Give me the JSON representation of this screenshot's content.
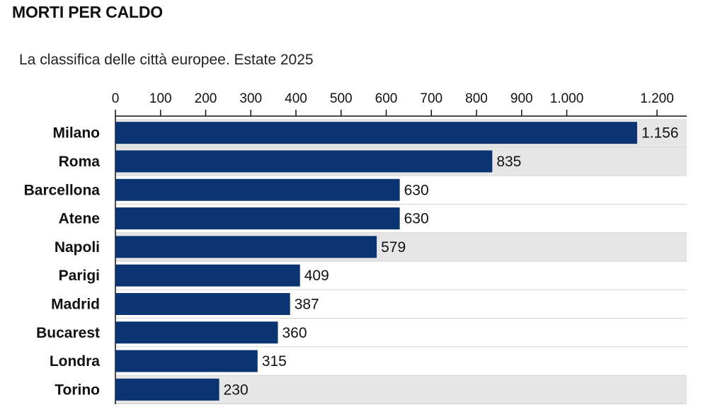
{
  "header": {
    "title": "MORTI PER CALDO",
    "subtitle": "La classifica delle città europee. Estate 2025"
  },
  "colors": {
    "bar": "#0a3572",
    "band": "#e6e6e6",
    "axis": "#111111"
  },
  "chart_data": {
    "type": "bar",
    "orientation": "horizontal",
    "title": "MORTI PER CALDO",
    "subtitle": "La classifica delle città europee. Estate 2025",
    "xlabel": "",
    "ylabel": "",
    "xlim": [
      0,
      1266
    ],
    "x_ticks": [
      0,
      100,
      200,
      300,
      400,
      500,
      600,
      700,
      800,
      900,
      1000,
      1200
    ],
    "x_tick_labels": [
      "0",
      "100",
      "200",
      "300",
      "400",
      "500",
      "600",
      "700",
      "800",
      "900",
      "1.000",
      "1.200"
    ],
    "axis_position": "top",
    "grid": false,
    "categories": [
      "Milano",
      "Roma",
      "Barcellona",
      "Atene",
      "Napoli",
      "Parigi",
      "Madrid",
      "Bucarest",
      "Londra",
      "Torino"
    ],
    "values": [
      1156,
      835,
      630,
      630,
      579,
      409,
      387,
      360,
      315,
      230
    ],
    "value_labels": [
      "1.156",
      "835",
      "630",
      "630",
      "579",
      "409",
      "387",
      "360",
      "315",
      "230"
    ],
    "italy": [
      true,
      true,
      false,
      false,
      true,
      false,
      false,
      false,
      false,
      true
    ]
  }
}
